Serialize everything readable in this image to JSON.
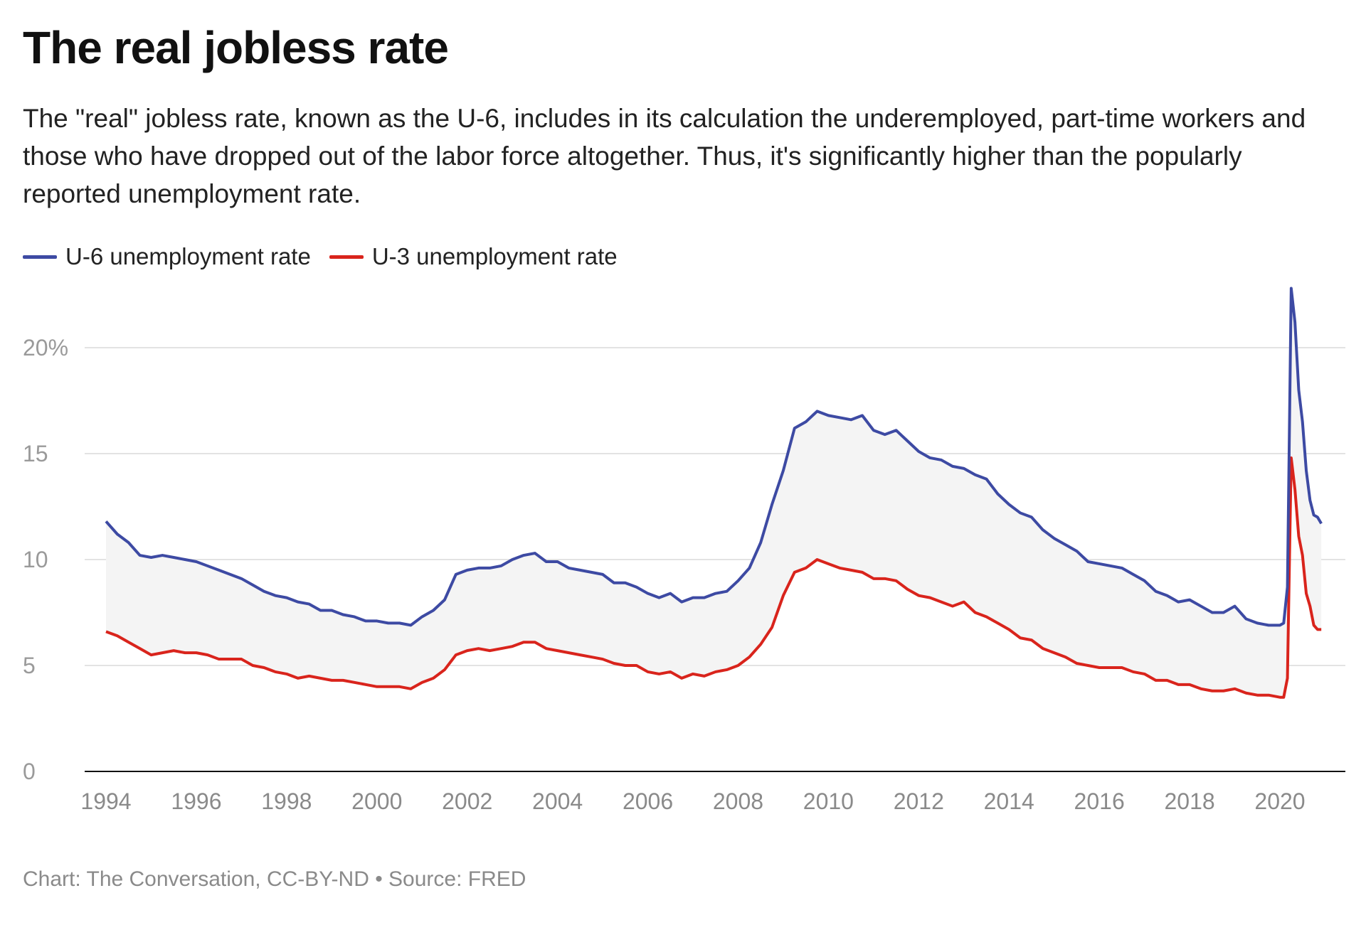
{
  "title": "The real jobless rate",
  "subtitle": "The \"real\" jobless rate, known as the U-6, includes in its calculation the underemployed, part-time workers and those who have dropped out of the labor force altogether. Thus, it's significantly higher than the popularly reported unemployment rate.",
  "footer": "Chart: The Conversation, CC-BY-ND • Source: FRED",
  "chart_data": {
    "type": "line",
    "title": "The real jobless rate",
    "xlabel": "",
    "ylabel": "",
    "ylim": [
      0,
      23
    ],
    "xlim": [
      "1994-01",
      "2020-12"
    ],
    "grid": true,
    "legend_placement": "top-left",
    "shaded_area_between_series": true,
    "y_ticks": [
      {
        "value": 0,
        "label": "0"
      },
      {
        "value": 5,
        "label": "5"
      },
      {
        "value": 10,
        "label": "10"
      },
      {
        "value": 15,
        "label": "15"
      },
      {
        "value": 20,
        "label": "20%"
      }
    ],
    "x_ticks": [
      "1994",
      "1996",
      "1998",
      "2000",
      "2002",
      "2004",
      "2006",
      "2008",
      "2010",
      "2012",
      "2014",
      "2016",
      "2018",
      "2020"
    ],
    "dates": [
      "1994-01",
      "1994-04",
      "1994-07",
      "1994-10",
      "1995-01",
      "1995-04",
      "1995-07",
      "1995-10",
      "1996-01",
      "1996-04",
      "1996-07",
      "1996-10",
      "1997-01",
      "1997-04",
      "1997-07",
      "1997-10",
      "1998-01",
      "1998-04",
      "1998-07",
      "1998-10",
      "1999-01",
      "1999-04",
      "1999-07",
      "1999-10",
      "2000-01",
      "2000-04",
      "2000-07",
      "2000-10",
      "2001-01",
      "2001-04",
      "2001-07",
      "2001-10",
      "2002-01",
      "2002-04",
      "2002-07",
      "2002-10",
      "2003-01",
      "2003-04",
      "2003-07",
      "2003-10",
      "2004-01",
      "2004-04",
      "2004-07",
      "2004-10",
      "2005-01",
      "2005-04",
      "2005-07",
      "2005-10",
      "2006-01",
      "2006-04",
      "2006-07",
      "2006-10",
      "2007-01",
      "2007-04",
      "2007-07",
      "2007-10",
      "2008-01",
      "2008-04",
      "2008-07",
      "2008-10",
      "2009-01",
      "2009-04",
      "2009-07",
      "2009-10",
      "2010-01",
      "2010-04",
      "2010-07",
      "2010-10",
      "2011-01",
      "2011-04",
      "2011-07",
      "2011-10",
      "2012-01",
      "2012-04",
      "2012-07",
      "2012-10",
      "2013-01",
      "2013-04",
      "2013-07",
      "2013-10",
      "2014-01",
      "2014-04",
      "2014-07",
      "2014-10",
      "2015-01",
      "2015-04",
      "2015-07",
      "2015-10",
      "2016-01",
      "2016-04",
      "2016-07",
      "2016-10",
      "2017-01",
      "2017-04",
      "2017-07",
      "2017-10",
      "2018-01",
      "2018-04",
      "2018-07",
      "2018-10",
      "2019-01",
      "2019-04",
      "2019-07",
      "2019-10",
      "2020-01",
      "2020-02",
      "2020-03",
      "2020-04",
      "2020-05",
      "2020-06",
      "2020-07",
      "2020-08",
      "2020-09",
      "2020-10",
      "2020-11",
      "2020-12"
    ],
    "series": [
      {
        "name": "U-6 unemployment rate",
        "color": "#3d4aa3",
        "values": [
          11.8,
          11.2,
          10.8,
          10.2,
          10.1,
          10.2,
          10.1,
          10.0,
          9.9,
          9.7,
          9.5,
          9.3,
          9.1,
          8.8,
          8.5,
          8.3,
          8.2,
          8.0,
          7.9,
          7.6,
          7.6,
          7.4,
          7.3,
          7.1,
          7.1,
          7.0,
          7.0,
          6.9,
          7.3,
          7.6,
          8.1,
          9.3,
          9.5,
          9.6,
          9.6,
          9.7,
          10.0,
          10.2,
          10.3,
          9.9,
          9.9,
          9.6,
          9.5,
          9.4,
          9.3,
          8.9,
          8.9,
          8.7,
          8.4,
          8.2,
          8.4,
          8.0,
          8.2,
          8.2,
          8.4,
          8.5,
          9.0,
          9.6,
          10.8,
          12.6,
          14.2,
          16.2,
          16.5,
          17.0,
          16.8,
          16.7,
          16.6,
          16.8,
          16.1,
          15.9,
          16.1,
          15.6,
          15.1,
          14.8,
          14.7,
          14.4,
          14.3,
          14.0,
          13.8,
          13.1,
          12.6,
          12.2,
          12.0,
          11.4,
          11.0,
          10.7,
          10.4,
          9.9,
          9.8,
          9.7,
          9.6,
          9.3,
          9.0,
          8.5,
          8.3,
          8.0,
          8.1,
          7.8,
          7.5,
          7.5,
          7.8,
          7.2,
          7.0,
          6.9,
          6.9,
          7.0,
          8.7,
          22.8,
          21.2,
          18.0,
          16.5,
          14.2,
          12.8,
          12.1,
          12.0,
          11.7
        ]
      },
      {
        "name": "U-3 unemployment rate",
        "color": "#d9241c",
        "values": [
          6.6,
          6.4,
          6.1,
          5.8,
          5.5,
          5.6,
          5.7,
          5.6,
          5.6,
          5.5,
          5.3,
          5.3,
          5.3,
          5.0,
          4.9,
          4.7,
          4.6,
          4.4,
          4.5,
          4.4,
          4.3,
          4.3,
          4.2,
          4.1,
          4.0,
          4.0,
          4.0,
          3.9,
          4.2,
          4.4,
          4.8,
          5.5,
          5.7,
          5.8,
          5.7,
          5.8,
          5.9,
          6.1,
          6.1,
          5.8,
          5.7,
          5.6,
          5.5,
          5.4,
          5.3,
          5.1,
          5.0,
          5.0,
          4.7,
          4.6,
          4.7,
          4.4,
          4.6,
          4.5,
          4.7,
          4.8,
          5.0,
          5.4,
          6.0,
          6.8,
          8.3,
          9.4,
          9.6,
          10.0,
          9.8,
          9.6,
          9.5,
          9.4,
          9.1,
          9.1,
          9.0,
          8.6,
          8.3,
          8.2,
          8.0,
          7.8,
          8.0,
          7.5,
          7.3,
          7.0,
          6.7,
          6.3,
          6.2,
          5.8,
          5.6,
          5.4,
          5.1,
          5.0,
          4.9,
          4.9,
          4.9,
          4.7,
          4.6,
          4.3,
          4.3,
          4.1,
          4.1,
          3.9,
          3.8,
          3.8,
          3.9,
          3.7,
          3.6,
          3.6,
          3.5,
          3.5,
          4.4,
          14.8,
          13.3,
          11.1,
          10.2,
          8.4,
          7.8,
          6.9,
          6.7,
          6.7
        ]
      }
    ]
  }
}
